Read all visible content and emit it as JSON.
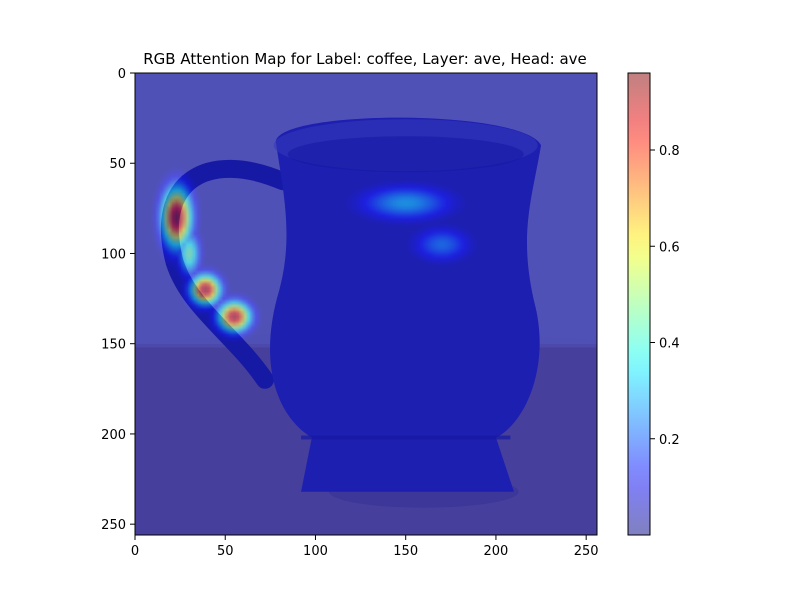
{
  "chart_data": {
    "type": "heatmap",
    "title": "RGB Attention Map for Label: coffee, Layer: ave, Head: ave",
    "xlabel": "",
    "ylabel": "",
    "image_extent": {
      "x": [
        0,
        256
      ],
      "y": [
        0,
        256
      ]
    },
    "x_ticks": [
      0,
      50,
      100,
      150,
      200,
      250
    ],
    "y_ticks": [
      0,
      50,
      100,
      150,
      200,
      250
    ],
    "y_axis_inverted": true,
    "colormap": "jet",
    "overlay_alpha": 0.5,
    "colorbar": {
      "range": [
        0.0,
        0.96
      ],
      "ticks": [
        0.2,
        0.4,
        0.6,
        0.8
      ],
      "tick_labels": [
        "0.2",
        "0.4",
        "0.6",
        "0.8"
      ]
    },
    "hotspots": [
      {
        "x": 23,
        "y": 80,
        "sx": 5.5,
        "sy": 11,
        "value": 0.96
      },
      {
        "x": 39,
        "y": 120,
        "sx": 5.5,
        "sy": 5.5,
        "value": 0.93
      },
      {
        "x": 55,
        "y": 135,
        "sx": 6,
        "sy": 5.5,
        "value": 0.92
      },
      {
        "x": 150,
        "y": 72,
        "sx": 16,
        "sy": 6,
        "value": 0.33
      },
      {
        "x": 170,
        "y": 95,
        "sx": 10,
        "sy": 6,
        "value": 0.25
      },
      {
        "x": 30,
        "y": 100,
        "sx": 4,
        "sy": 8,
        "value": 0.45
      }
    ],
    "base_value": 0.03,
    "background_colors": {
      "wall_top": "#a0a2cc",
      "wall_bottom": "#9ea0c8",
      "table": "#8f7f99",
      "mug": "#3a3fc0",
      "mug_shadow": "#2c32a8",
      "mug_highlight": "#6a73d6"
    }
  }
}
